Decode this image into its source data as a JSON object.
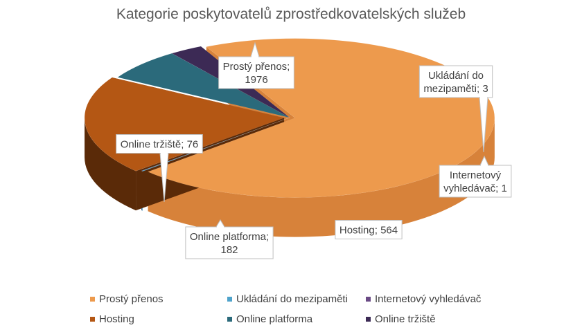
{
  "chart_data": {
    "type": "pie",
    "title": "Kategorie poskytovatelů zprostředkovatelských služeb",
    "categories": [
      "Prostý přenos",
      "Ukládání do mezipaměti",
      "Internetový vyhledávač",
      "Hosting",
      "Online platforma",
      "Online tržiště"
    ],
    "values": [
      1976,
      3,
      1,
      564,
      182,
      76
    ],
    "labels": [
      "Prostý přenos; 1976",
      "Ukládání do mezipaměti; 3",
      "Internetový vyhledávač; 1",
      "Hosting; 564",
      "Online platforma; 182",
      "Online tržiště; 76"
    ],
    "colors": [
      "#ED9A4D",
      "#4FA3CB",
      "#6A4A85",
      "#B45714",
      "#2B6A7B",
      "#3C2A55"
    ],
    "side_colors": [
      "#D7823A",
      "#3B8CB3",
      "#4E3464",
      "#5A2A08",
      "#1E4C59",
      "#2A1C3E"
    ],
    "style": "3d-exploded",
    "legend_position": "bottom"
  }
}
